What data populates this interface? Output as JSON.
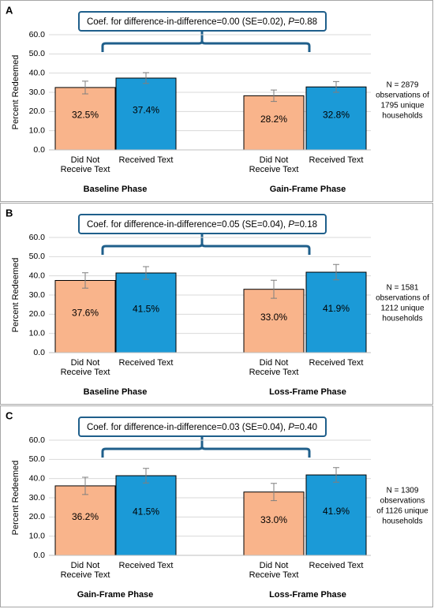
{
  "chart_data": [
    {
      "type": "bar",
      "panel": "A",
      "annotation": [
        "Coef. for difference-in-difference=0.00 (SE=0.02), ",
        "P",
        "=0.88"
      ],
      "ylabel": "Percent Redeemed",
      "categories": [
        [
          "Did Not",
          "Receive Text"
        ],
        [
          "Received Text"
        ],
        [
          "Did Not",
          "Receive Text"
        ],
        [
          "Received Text"
        ]
      ],
      "groups": [
        "Baseline Phase",
        "Gain-Frame Phase"
      ],
      "values": [
        32.5,
        37.4,
        28.2,
        32.8
      ],
      "value_labels": [
        "32.5%",
        "37.4%",
        "28.2%",
        "32.8%"
      ],
      "errors": [
        3.3,
        2.8,
        3.0,
        2.8
      ],
      "colors": [
        "#f9b48b",
        "#1b9ad7",
        "#f9b48b",
        "#1b9ad7"
      ],
      "ylim": [
        0,
        60
      ],
      "yticks": [
        {
          "value": 0,
          "label": "0.0"
        },
        {
          "value": 10,
          "label": "10.0"
        },
        {
          "value": 20,
          "label": "20.0"
        },
        {
          "value": 30,
          "label": "30.0"
        },
        {
          "value": 40,
          "label": "40.0"
        },
        {
          "value": 50,
          "label": "50.0"
        },
        {
          "value": 60,
          "label": "60.0"
        }
      ],
      "grid": true,
      "note": [
        "N = 2879",
        "observations of",
        "1795 unique",
        "households"
      ]
    },
    {
      "type": "bar",
      "panel": "B",
      "annotation": [
        "Coef. for difference-in-difference=0.05 (SE=0.04), ",
        "P",
        "=0.18"
      ],
      "ylabel": "Percent Redeemed",
      "categories": [
        [
          "Did Not",
          "Receive Text"
        ],
        [
          "Received Text"
        ],
        [
          "Did Not",
          "Receive Text"
        ],
        [
          "Received Text"
        ]
      ],
      "groups": [
        "Baseline Phase",
        "Loss-Frame Phase"
      ],
      "values": [
        37.6,
        41.5,
        33.0,
        41.9
      ],
      "value_labels": [
        "37.6%",
        "41.5%",
        "33.0%",
        "41.9%"
      ],
      "errors": [
        4.0,
        3.3,
        4.7,
        4.0
      ],
      "colors": [
        "#f9b48b",
        "#1b9ad7",
        "#f9b48b",
        "#1b9ad7"
      ],
      "ylim": [
        0,
        60
      ],
      "yticks": [
        {
          "value": 0,
          "label": "0.0"
        },
        {
          "value": 10,
          "label": "10.0"
        },
        {
          "value": 20,
          "label": "20.0"
        },
        {
          "value": 30,
          "label": "30.0"
        },
        {
          "value": 40,
          "label": "40.0"
        },
        {
          "value": 50,
          "label": "50.0"
        },
        {
          "value": 60,
          "label": "60.0"
        }
      ],
      "grid": true,
      "note": [
        "N = 1581",
        "observations of",
        "1212 unique",
        "households"
      ]
    },
    {
      "type": "bar",
      "panel": "C",
      "annotation": [
        "Coef. for difference-in-difference=0.03 (SE=0.04), ",
        "P",
        "=0.40"
      ],
      "ylabel": "Percent Redeemed",
      "categories": [
        [
          "Did Not",
          "Receive Text"
        ],
        [
          "Received Text"
        ],
        [
          "Did Not",
          "Receive Text"
        ],
        [
          "Received Text"
        ]
      ],
      "groups": [
        "Gain-Frame Phase",
        "Loss-Frame Phase"
      ],
      "values": [
        36.2,
        41.5,
        33.0,
        41.9
      ],
      "value_labels": [
        "36.2%",
        "41.5%",
        "33.0%",
        "41.9%"
      ],
      "errors": [
        4.5,
        3.8,
        4.5,
        3.8
      ],
      "colors": [
        "#f9b48b",
        "#1b9ad7",
        "#f9b48b",
        "#1b9ad7"
      ],
      "ylim": [
        0,
        60
      ],
      "yticks": [
        {
          "value": 0,
          "label": "0.0"
        },
        {
          "value": 10,
          "label": "10.0"
        },
        {
          "value": 20,
          "label": "20.0"
        },
        {
          "value": 30,
          "label": "30.0"
        },
        {
          "value": 40,
          "label": "40.0"
        },
        {
          "value": 50,
          "label": "50.0"
        },
        {
          "value": 60,
          "label": "60.0"
        }
      ],
      "grid": true,
      "note": [
        "N = 1309",
        "observations",
        "of 1126 unique",
        "households"
      ]
    }
  ]
}
